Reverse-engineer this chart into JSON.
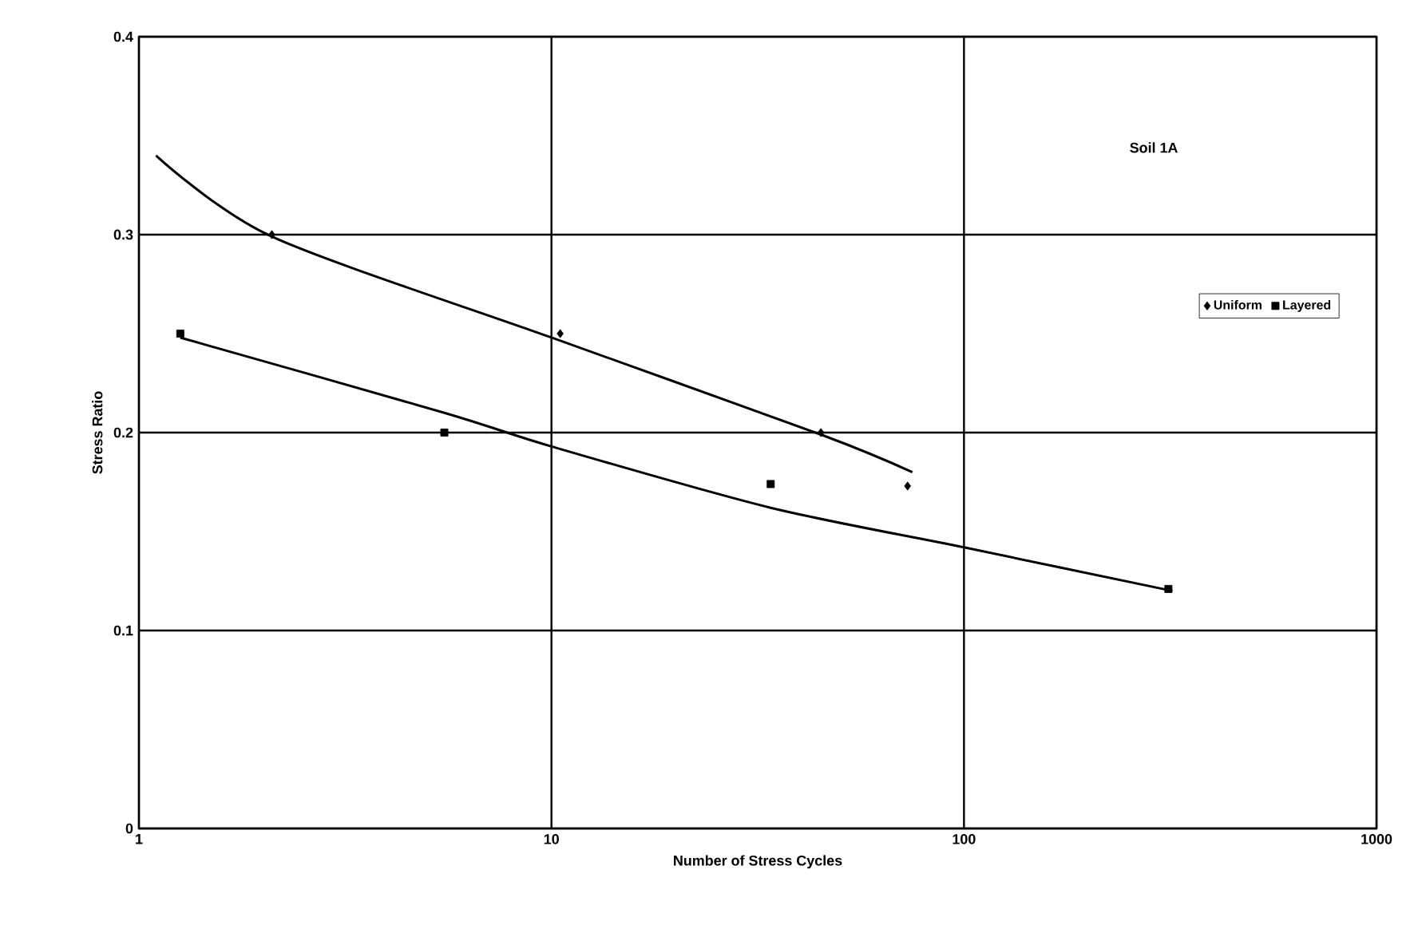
{
  "chart_data": {
    "type": "scatter",
    "xlabel": "Number of Stress Cycles",
    "ylabel": "Stress Ratio",
    "annotations": [
      "Soil 1A"
    ],
    "log": "x",
    "grid": true,
    "legend": "right",
    "xlim": [
      1,
      1000
    ],
    "xticks": [
      1,
      10,
      100,
      1000
    ],
    "ylim": [
      0,
      0.4
    ],
    "yticks": [
      0,
      0.1,
      0.2,
      0.3,
      0.4
    ],
    "series": [
      {
        "name": "Uniform",
        "color": "#000000",
        "marker": "diamond",
        "x": [
          2.1,
          10.5,
          45,
          73
        ],
        "values": [
          0.3,
          0.25,
          0.2,
          0.173
        ]
      },
      {
        "name": "Layered",
        "color": "#000000",
        "marker": "square",
        "x": [
          1.26,
          5.5,
          34,
          313
        ],
        "values": [
          0.25,
          0.2,
          0.174,
          0.121
        ]
      },
      {
        "type": "line",
        "color": "#000000",
        "marker": "none",
        "x": [
          1.1,
          2.1,
          10,
          45,
          75
        ],
        "values": [
          0.34,
          0.299,
          0.248,
          0.199,
          0.18
        ]
      },
      {
        "type": "line",
        "color": "#000000",
        "marker": "none",
        "x": [
          1.26,
          5.5,
          10,
          34,
          100,
          320
        ],
        "values": [
          0.248,
          0.21,
          0.193,
          0.162,
          0.142,
          0.12
        ]
      }
    ]
  }
}
